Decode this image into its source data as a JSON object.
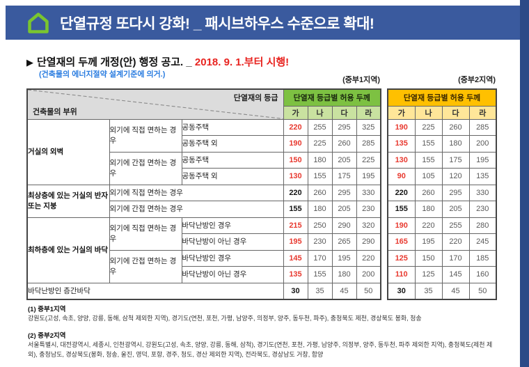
{
  "colors": {
    "header_bar": "#3a5a9e",
    "right_strip": "#2c4a87",
    "region1_header": "#7dc142",
    "region1_subheader": "#c9e2a0",
    "region2_header": "#ffc000",
    "region2_subheader": "#ffe699",
    "emphasis_red": "#e8392f",
    "notice_blue": "#2b7de0"
  },
  "header": {
    "title": "단열규정 또다시 강화! _ 패시브하우스 수준으로 확대!"
  },
  "notice": {
    "arrow": "▶",
    "title": "단열재의 두께 개정(안) 행정 공고. _ ",
    "title_red": "2018. 9. 1.부터 시행!",
    "basis": "(건축물의 에너지절약 설계기준에 의거.)",
    "region1_label": "(중부1지역)",
    "region2_label": "(중부2지역)"
  },
  "table": {
    "corner_top": "단열재의 등급",
    "corner_bottom": "건축물의 부위",
    "group_header": "단열재 등급별 허용 두께",
    "grade_cols": [
      "가",
      "나",
      "다",
      "라"
    ],
    "rows": [
      {
        "part": "거실의 외벽",
        "cond": "외기에 직접 면하는 경우",
        "sub": "공동주택",
        "m1": [
          "220",
          "255",
          "295",
          "325"
        ],
        "m2": [
          "190",
          "225",
          "260",
          "285"
        ],
        "emphasis": "red"
      },
      {
        "sub": "공동주택 외",
        "m1": [
          "190",
          "225",
          "260",
          "285"
        ],
        "m2": [
          "135",
          "155",
          "180",
          "200"
        ],
        "emphasis": "red"
      },
      {
        "cond": "외기에 간접 면하는 경우",
        "sub": "공동주택",
        "m1": [
          "150",
          "180",
          "205",
          "225"
        ],
        "m2": [
          "130",
          "155",
          "175",
          "195"
        ],
        "emphasis": "red"
      },
      {
        "sub": "공동주택 외",
        "m1": [
          "130",
          "155",
          "175",
          "195"
        ],
        "m2": [
          "90",
          "105",
          "120",
          "135"
        ],
        "emphasis": "red"
      },
      {
        "part": "최상층에 있는 거실의 반자 또는 지붕",
        "cond": "외기에 직접 면하는 경우",
        "m1": [
          "220",
          "260",
          "295",
          "330"
        ],
        "m2": [
          "220",
          "260",
          "295",
          "330"
        ],
        "emphasis": "bold"
      },
      {
        "cond": "외기에 간접 면하는 경우",
        "m1": [
          "155",
          "180",
          "205",
          "230"
        ],
        "m2": [
          "155",
          "180",
          "205",
          "230"
        ],
        "emphasis": "bold"
      },
      {
        "part": "최하층에 있는 거실의 바닥",
        "cond": "외기에 직접 면하는 경우",
        "sub": "바닥난방인 경우",
        "m1": [
          "215",
          "250",
          "290",
          "320"
        ],
        "m2": [
          "190",
          "220",
          "255",
          "280"
        ],
        "emphasis": "red"
      },
      {
        "sub": "바닥난방이 아닌 경우",
        "m1": [
          "195",
          "230",
          "265",
          "290"
        ],
        "m2": [
          "165",
          "195",
          "220",
          "245"
        ],
        "emphasis": "red"
      },
      {
        "cond": "외기에 간접 면하는 경우",
        "sub": "바닥난방인 경우",
        "m1": [
          "145",
          "170",
          "195",
          "220"
        ],
        "m2": [
          "125",
          "150",
          "170",
          "185"
        ],
        "emphasis": "red"
      },
      {
        "sub": "바닥난방이 아닌 경우",
        "m1": [
          "135",
          "155",
          "180",
          "200"
        ],
        "m2": [
          "110",
          "125",
          "145",
          "160"
        ],
        "emphasis": "red"
      },
      {
        "part": "바닥난방인 층간바닥",
        "m1": [
          "30",
          "35",
          "45",
          "50"
        ],
        "m2": [
          "30",
          "35",
          "45",
          "50"
        ],
        "emphasis": "bold"
      }
    ]
  },
  "footnotes": [
    {
      "label": "(1) 중부1지역",
      "text": "강원도(고성, 속초, 양양, 강릉, 동해, 삼척 제외한 지역), 경기도(연천, 포천, 가평, 남양주, 의정부, 양주, 동두천, 파주), 충청북도 제천, 경상북도 봉화, 청송"
    },
    {
      "label": "(2) 중부2지역",
      "text": "서울특별시, 대전광역시, 세종시, 인천광역시, 강원도(고성, 속초, 양양, 강릉, 동해, 삼척), 경기도(연천, 포천, 가평, 남양주, 의정부, 양주, 동두천, 파주 제외한 지역), 충청북도(제천 제외), 충청남도, 경상북도(봉화, 청송, 울진, 영덕, 포항, 경주, 청도, 경산 제외한 지역), 전라북도, 경상남도 거창, 함양"
    }
  ]
}
